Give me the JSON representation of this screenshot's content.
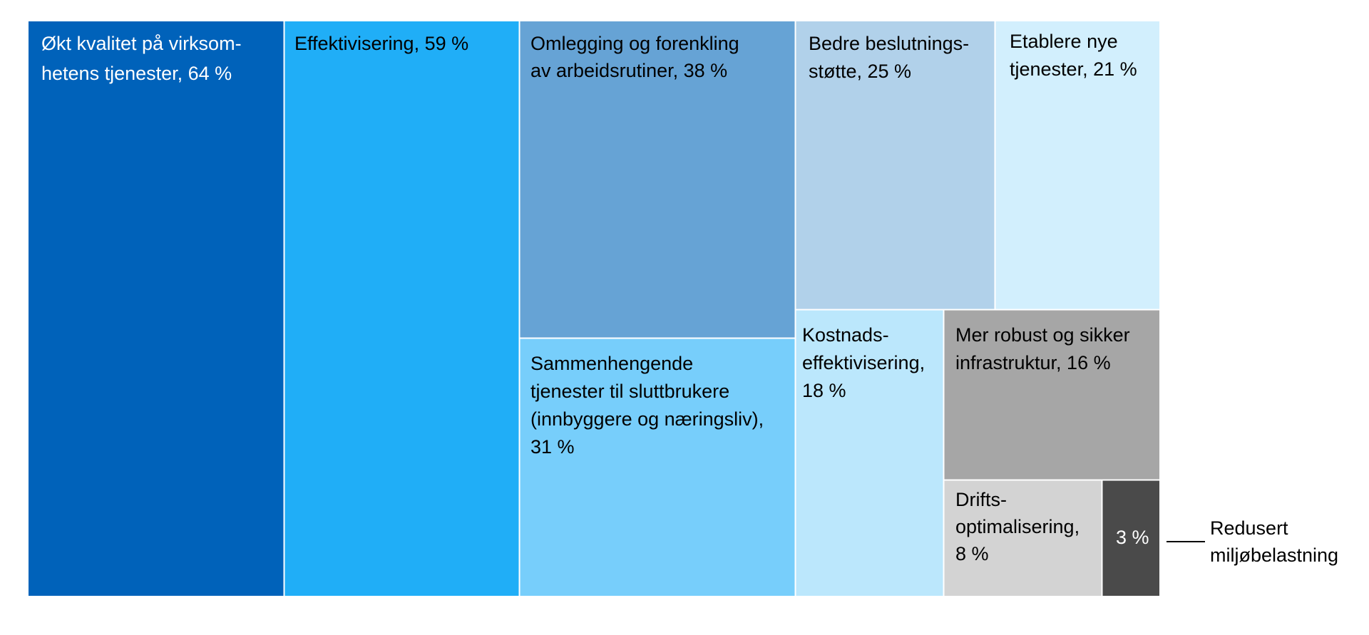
{
  "chart_data": {
    "type": "treemap",
    "unit": "%",
    "items": [
      {
        "id": "okt-kvalitet",
        "lines": [
          "Økt kvalitet på virksom-",
          "hetens tjenester, 64 %"
        ],
        "value": 64,
        "color": "#0062BA",
        "text_color": "#ffffff"
      },
      {
        "id": "effektivisering",
        "lines": [
          "Effektivisering, 59 %"
        ],
        "value": 59,
        "color": "#20AEF7",
        "text_color": "#000000"
      },
      {
        "id": "omlegging",
        "lines": [
          "Omlegging og forenkling",
          "av arbeidsrutiner, 38 %"
        ],
        "value": 38,
        "color": "#66A3D5",
        "text_color": "#000000"
      },
      {
        "id": "sammenhengende",
        "lines": [
          "Sammenhengende",
          "tjenester til sluttbrukere",
          "(innbyggere og næringsliv),",
          "31 %"
        ],
        "value": 31,
        "color": "#77CEFB",
        "text_color": "#000000"
      },
      {
        "id": "bedre-beslutning",
        "lines": [
          "Bedre beslutnings-",
          "støtte, 25 %"
        ],
        "value": 25,
        "color": "#B1D1EA",
        "text_color": "#000000"
      },
      {
        "id": "etablere",
        "lines": [
          "Etablere nye",
          "tjenester, 21 %"
        ],
        "value": 21,
        "color": "#D2EFFD",
        "text_color": "#000000"
      },
      {
        "id": "kostnads",
        "lines": [
          "Kostnads-",
          "effektivisering,",
          "18 %"
        ],
        "value": 18,
        "color": "#BBE7FC",
        "text_color": "#000000"
      },
      {
        "id": "robust",
        "lines": [
          "Mer robust og sikker",
          "infrastruktur, 16 %"
        ],
        "value": 16,
        "color": "#A6A6A6",
        "text_color": "#000000"
      },
      {
        "id": "drifts",
        "lines": [
          "Drifts-",
          "optimalisering,",
          "8 %"
        ],
        "value": 8,
        "color": "#D3D3D3",
        "text_color": "#000000"
      },
      {
        "id": "miljo",
        "lines": [
          "3 %"
        ],
        "value": 3,
        "color": "#4A4A4A",
        "text_color": "#ffffff",
        "external_label": [
          "Redusert",
          "miljøbelastning"
        ]
      }
    ]
  }
}
